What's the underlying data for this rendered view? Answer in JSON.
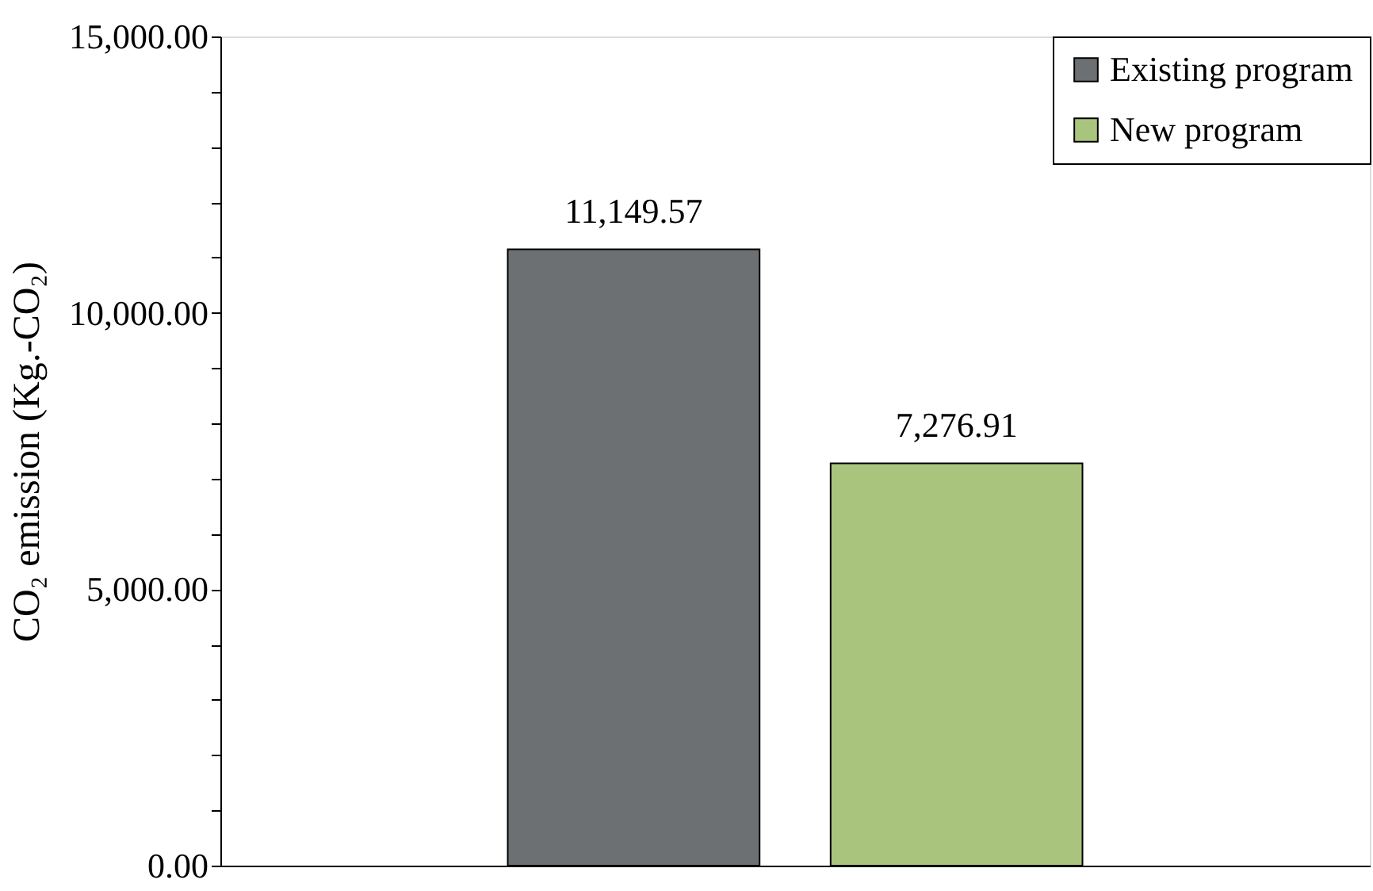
{
  "chart_data": {
    "type": "bar",
    "ylabel": "CO₂ emission (Kg.-CO₂)",
    "categories": [
      null
    ],
    "series": [
      {
        "name": "Existing program",
        "color": "#6d7072",
        "values": [
          11149.57
        ],
        "value_labels": [
          "11,149.57"
        ]
      },
      {
        "name": "New program",
        "color": "#a9c47c",
        "values": [
          7276.91
        ],
        "value_labels": [
          "7,276.91"
        ]
      }
    ],
    "ylim": [
      0,
      15000
    ],
    "yticks": [
      {
        "value": 0,
        "label": "0.00"
      },
      {
        "value": 1000,
        "label": null
      },
      {
        "value": 2000,
        "label": null
      },
      {
        "value": 3000,
        "label": null
      },
      {
        "value": 4000,
        "label": null
      },
      {
        "value": 5000,
        "label": "5,000.00"
      },
      {
        "value": 6000,
        "label": null
      },
      {
        "value": 7000,
        "label": null
      },
      {
        "value": 8000,
        "label": null
      },
      {
        "value": 9000,
        "label": null
      },
      {
        "value": 10000,
        "label": "10,000.00"
      },
      {
        "value": 11000,
        "label": null
      },
      {
        "value": 12000,
        "label": null
      },
      {
        "value": 13000,
        "label": null
      },
      {
        "value": 14000,
        "label": null
      },
      {
        "value": 15000,
        "label": "15,000.00"
      }
    ],
    "grid": false,
    "legend": "top right"
  }
}
